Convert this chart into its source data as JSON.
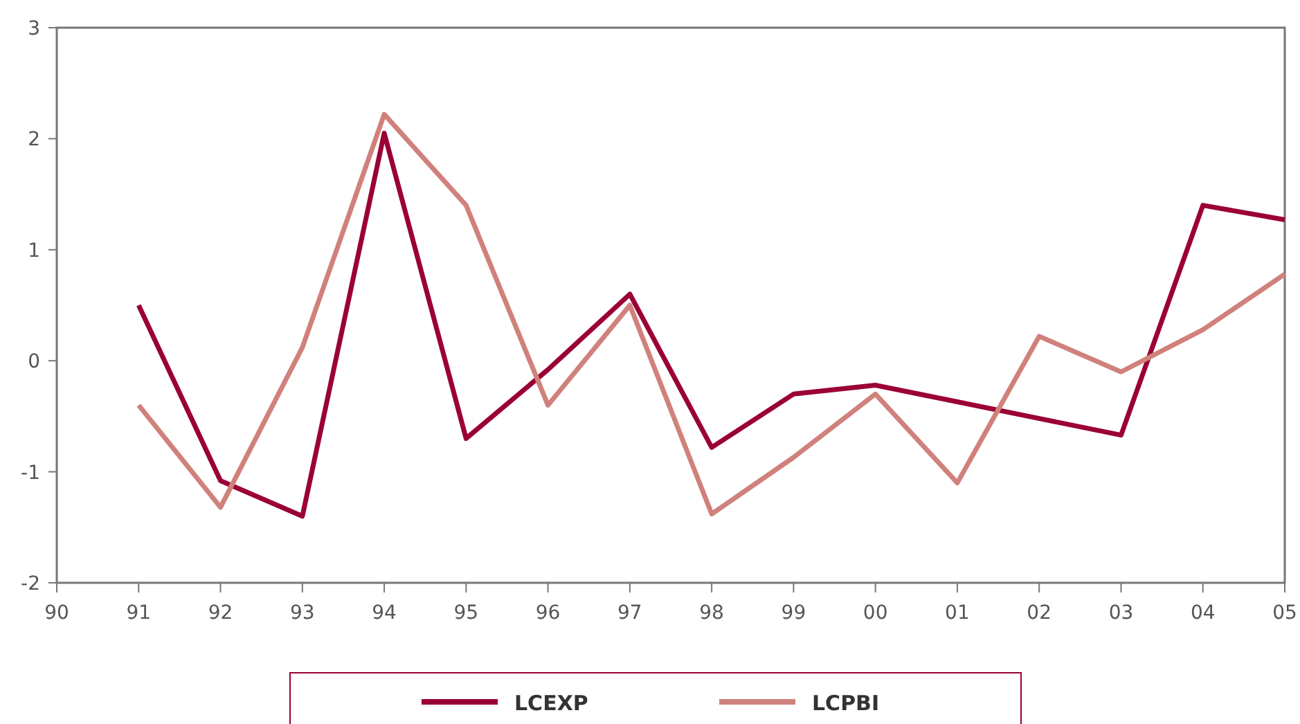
{
  "chart_data": {
    "type": "line",
    "categories": [
      "90",
      "91",
      "92",
      "93",
      "94",
      "95",
      "96",
      "97",
      "98",
      "99",
      "00",
      "01",
      "02",
      "03",
      "04",
      "05"
    ],
    "series": [
      {
        "name": "LCEXP",
        "color": "#9b0034",
        "values": [
          null,
          0.5,
          -1.08,
          -1.4,
          2.05,
          -0.7,
          -0.08,
          0.6,
          -0.78,
          -0.3,
          -0.22,
          -0.37,
          -0.52,
          -0.67,
          1.4,
          1.27
        ]
      },
      {
        "name": "LCPBI",
        "color": "#d0817c",
        "values": [
          null,
          -0.4,
          -1.32,
          0.12,
          2.22,
          1.4,
          -0.4,
          0.5,
          -1.38,
          -0.87,
          -0.3,
          -1.1,
          0.22,
          -0.1,
          0.28,
          0.78
        ]
      }
    ],
    "ylim": [
      -2,
      3
    ],
    "yticks": [
      -2,
      -1,
      0,
      1,
      2,
      3
    ],
    "grid": false,
    "legend": "bottom",
    "marker": "none",
    "line_style": "solid"
  }
}
